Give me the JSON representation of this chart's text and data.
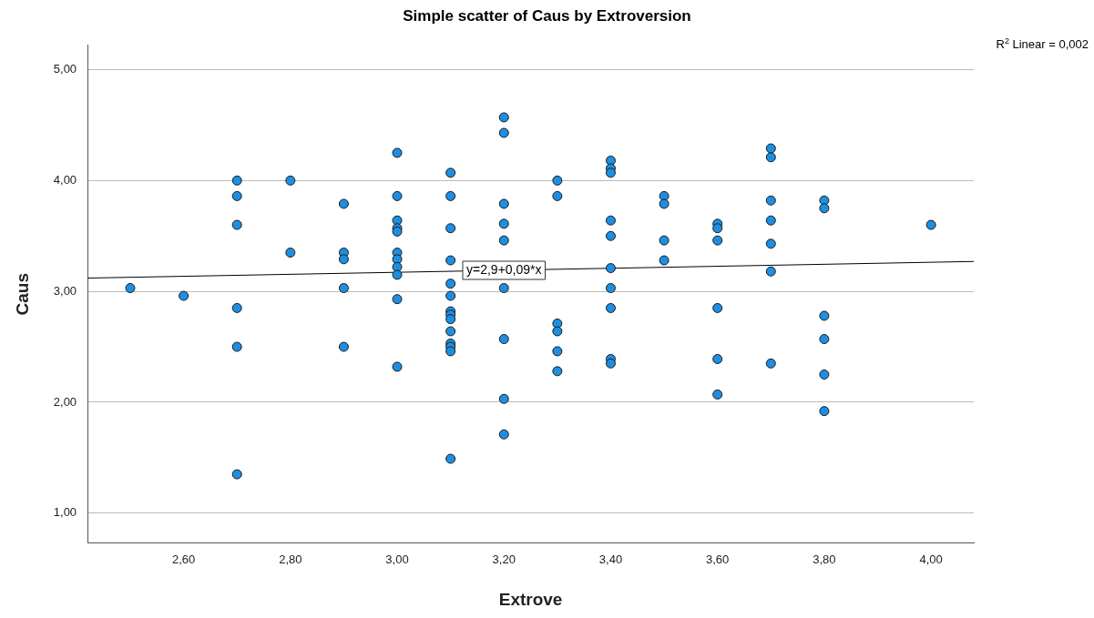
{
  "chart_data": {
    "type": "scatter",
    "title": "Simple scatter of Caus by Extroversion",
    "xlabel": "Extrove",
    "ylabel": "Caus",
    "xlim": [
      2.42,
      4.08
    ],
    "ylim": [
      0.73,
      5.22
    ],
    "xticks": [
      {
        "value": 2.6,
        "label": "2,60"
      },
      {
        "value": 2.8,
        "label": "2,80"
      },
      {
        "value": 3.0,
        "label": "3,00"
      },
      {
        "value": 3.2,
        "label": "3,20"
      },
      {
        "value": 3.4,
        "label": "3,40"
      },
      {
        "value": 3.6,
        "label": "3,60"
      },
      {
        "value": 3.8,
        "label": "3,80"
      },
      {
        "value": 4.0,
        "label": "4,00"
      }
    ],
    "yticks": [
      {
        "value": 1,
        "label": "1,00"
      },
      {
        "value": 2,
        "label": "2,00"
      },
      {
        "value": 3,
        "label": "3,00"
      },
      {
        "value": 4,
        "label": "4,00"
      },
      {
        "value": 5,
        "label": "5,00"
      }
    ],
    "grid": "y",
    "legend": false,
    "marker": "circle",
    "series": [
      {
        "color": "#1e8fe0",
        "x": [
          2.5,
          2.6,
          2.7,
          2.7,
          2.7,
          2.7,
          2.7,
          2.7,
          2.8,
          2.8,
          2.9,
          2.9,
          2.9,
          2.9,
          2.9,
          3.0,
          3.0,
          3.0,
          3.0,
          3.0,
          3.0,
          3.0,
          3.0,
          3.0,
          3.0,
          3.0,
          3.1,
          3.1,
          3.1,
          3.1,
          3.1,
          3.1,
          3.1,
          3.1,
          3.1,
          3.1,
          3.1,
          3.1,
          3.1,
          3.1,
          3.2,
          3.2,
          3.2,
          3.2,
          3.2,
          3.2,
          3.2,
          3.2,
          3.2,
          3.3,
          3.3,
          3.3,
          3.3,
          3.3,
          3.3,
          3.4,
          3.4,
          3.4,
          3.4,
          3.4,
          3.4,
          3.4,
          3.4,
          3.4,
          3.4,
          3.5,
          3.5,
          3.5,
          3.5,
          3.6,
          3.6,
          3.6,
          3.6,
          3.6,
          3.6,
          3.7,
          3.7,
          3.7,
          3.7,
          3.7,
          3.7,
          3.7,
          3.8,
          3.8,
          3.8,
          3.8,
          3.8,
          3.8,
          4.0
        ],
        "values": [
          3.03,
          2.96,
          4.0,
          3.86,
          3.6,
          2.85,
          2.5,
          1.35,
          4.0,
          3.35,
          3.79,
          3.35,
          3.29,
          3.03,
          2.5,
          4.25,
          3.86,
          3.64,
          3.57,
          3.54,
          3.35,
          3.29,
          3.22,
          3.15,
          2.93,
          2.32,
          4.07,
          3.86,
          3.57,
          3.28,
          3.07,
          2.96,
          2.82,
          2.79,
          2.75,
          2.64,
          2.53,
          2.5,
          2.46,
          1.49,
          4.57,
          4.43,
          3.79,
          3.61,
          3.46,
          3.03,
          2.57,
          2.03,
          1.71,
          4.0,
          3.86,
          2.71,
          2.64,
          2.46,
          2.28,
          4.18,
          4.11,
          4.07,
          3.64,
          3.5,
          3.21,
          3.03,
          2.85,
          2.39,
          2.35,
          3.86,
          3.79,
          3.46,
          3.28,
          3.61,
          3.57,
          3.46,
          2.85,
          2.39,
          2.07,
          4.29,
          4.21,
          3.82,
          3.64,
          3.43,
          3.18,
          2.35,
          3.82,
          3.75,
          2.78,
          2.57,
          2.25,
          1.92,
          3.6
        ]
      },
      {
        "type": "line",
        "color": "#000000",
        "marker": "none",
        "x": [
          2.42,
          4.08
        ],
        "values": [
          3.12,
          3.27
        ]
      }
    ],
    "annotations": [
      {
        "text": "y=2,9+0,09*x",
        "x": 3.2,
        "y": 3.19
      },
      "R$^{2}$ Linear = 0,002"
    ]
  }
}
